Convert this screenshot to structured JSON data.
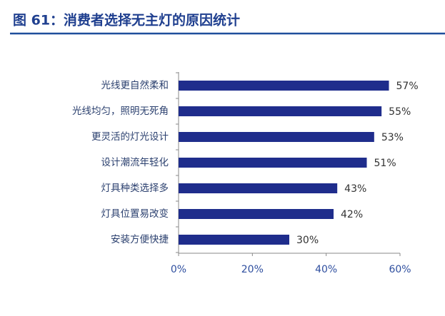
{
  "chart_data": {
    "type": "bar",
    "orientation": "horizontal",
    "title": "图 61：消费者选择无主灯的原因统计",
    "categories": [
      "光线更自然柔和",
      "光线均匀，照明无死角",
      "更灵活的灯光设计",
      "设计潮流年轻化",
      "灯具种类选择多",
      "灯具位置易改变",
      "安装方便快捷"
    ],
    "values": [
      57,
      55,
      53,
      51,
      43,
      42,
      30
    ],
    "value_labels": [
      "57%",
      "55%",
      "53%",
      "51%",
      "43%",
      "42%",
      "30%"
    ],
    "color": "#1f2d8c",
    "xlim": [
      0,
      60
    ],
    "xticks": [
      {
        "value": 0,
        "label": "0%"
      },
      {
        "value": 20,
        "label": "20%"
      },
      {
        "value": 40,
        "label": "40%"
      },
      {
        "value": 60,
        "label": "60%"
      }
    ],
    "grid": false
  }
}
